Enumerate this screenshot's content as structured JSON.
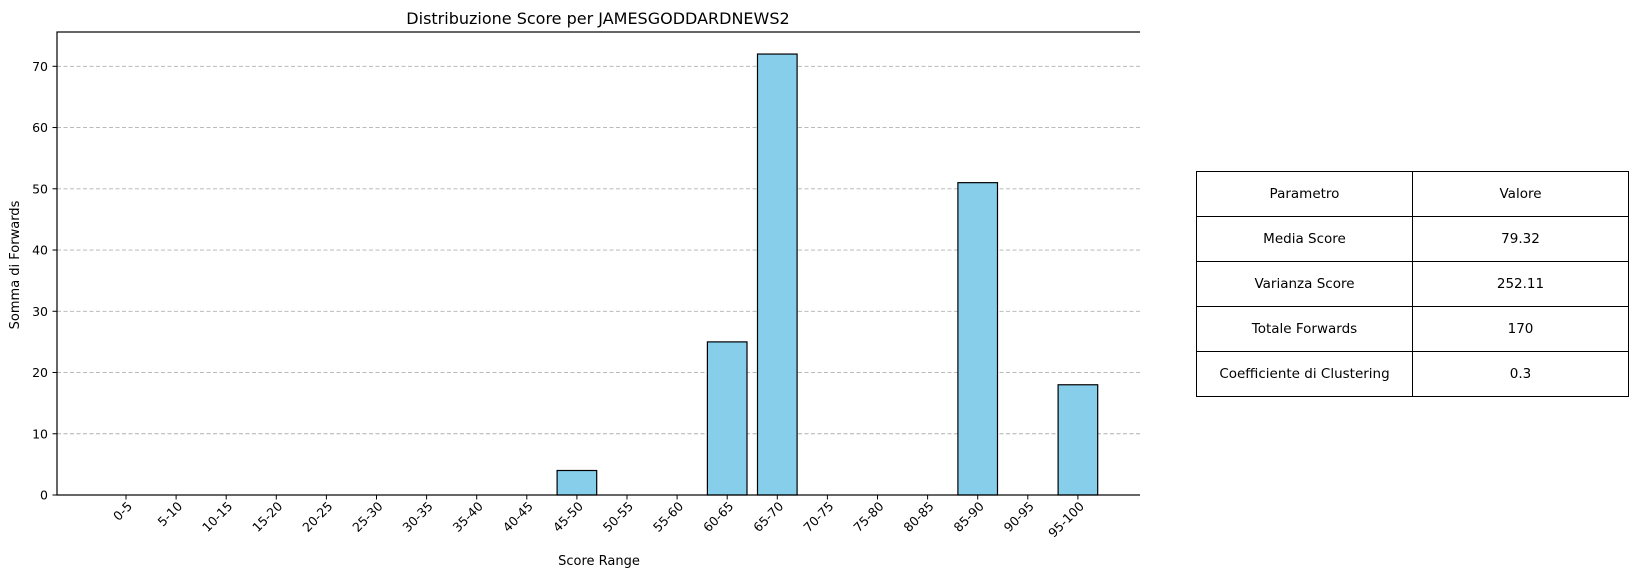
{
  "chart_data": {
    "type": "bar",
    "title": "Distribuzione Score per JAMESGODDARDNEWS2",
    "xlabel": "Score Range",
    "ylabel": "Somma di Forwards",
    "categories": [
      "0-5",
      "5-10",
      "10-15",
      "15-20",
      "20-25",
      "25-30",
      "30-35",
      "35-40",
      "40-45",
      "45-50",
      "50-55",
      "55-60",
      "60-65",
      "65-70",
      "70-75",
      "75-80",
      "80-85",
      "85-90",
      "90-95",
      "95-100"
    ],
    "values": [
      0,
      0,
      0,
      0,
      0,
      0,
      0,
      0,
      0,
      4,
      0,
      0,
      25,
      72,
      0,
      0,
      0,
      51,
      0,
      18
    ],
    "ylim": [
      0,
      75.6
    ],
    "yticks": [
      0,
      10,
      20,
      30,
      40,
      50,
      60,
      70
    ],
    "grid": "y-dashed",
    "bar_color": "#87ceeb",
    "edge_color": "#000000"
  },
  "table": {
    "header": [
      "Parametro",
      "Valore"
    ],
    "rows": [
      [
        "Media Score",
        "79.32"
      ],
      [
        "Varianza Score",
        "252.11"
      ],
      [
        "Totale Forwards",
        "170"
      ],
      [
        "Coefficiente di Clustering",
        "0.3"
      ]
    ]
  }
}
